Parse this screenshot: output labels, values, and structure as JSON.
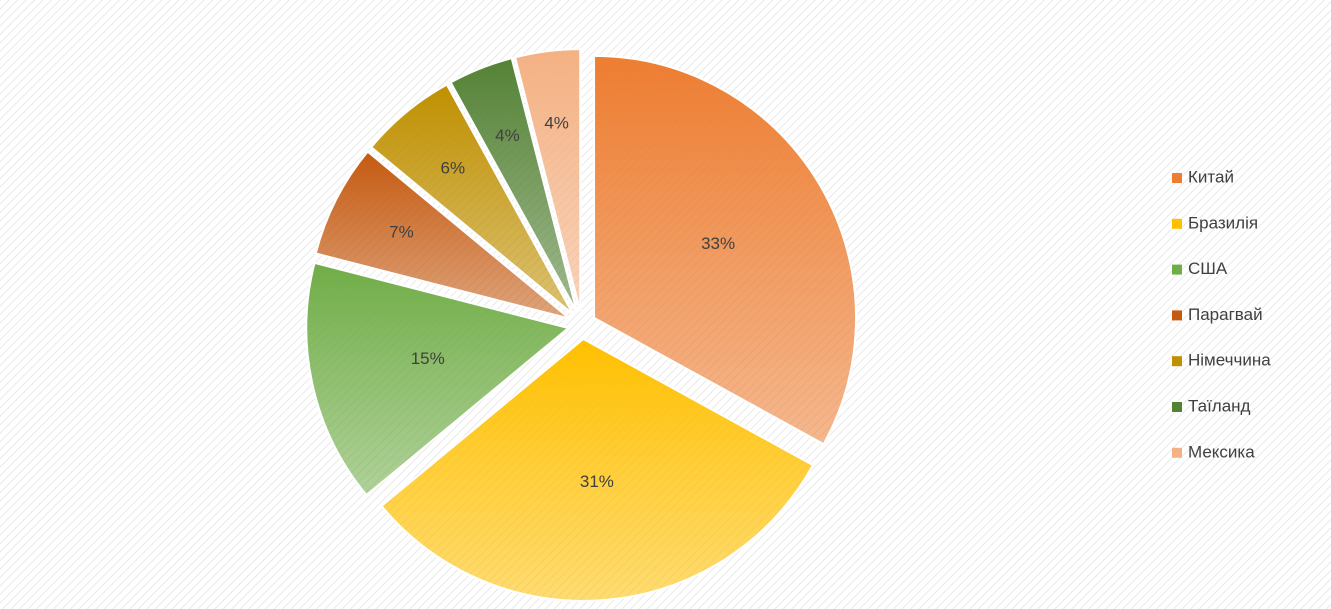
{
  "chart_data": {
    "type": "pie",
    "categories": [
      "Китай",
      "Бразилія",
      "США",
      "Парагвай",
      "Німеччина",
      "Таїланд",
      "Мексика"
    ],
    "values": [
      33,
      31,
      15,
      7,
      6,
      4,
      4
    ],
    "value_labels": [
      "33%",
      "31%",
      "15%",
      "7%",
      "6%",
      "4%",
      "4%"
    ],
    "colors": [
      "#ed7d31",
      "#ffc000",
      "#70ad47",
      "#c55a11",
      "#bf9000",
      "#548235",
      "#f4b183"
    ],
    "legend": "right"
  }
}
